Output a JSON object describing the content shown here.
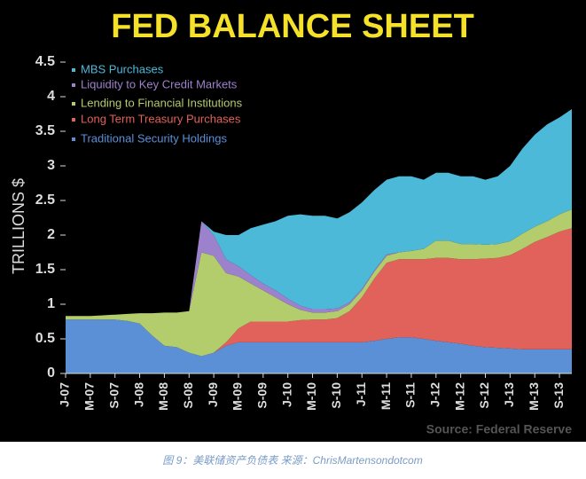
{
  "chart_data": {
    "type": "stacked-area",
    "title": "FED BALANCE SHEET",
    "y_label": "TRILLIONS $",
    "source": "Source: Federal Reserve",
    "caption": "图 9：美联储资产负债表  来源：ChrisMartensondotcom",
    "categories": [
      "J-07",
      null,
      "M-07",
      null,
      "S-07",
      null,
      "J-08",
      null,
      "M-08",
      null,
      "S-08",
      null,
      "J-09",
      null,
      "M-09",
      null,
      "S-09",
      null,
      "J-10",
      null,
      "M-10",
      null,
      "S-10",
      null,
      "J-11",
      null,
      "M-11",
      null,
      "S-11",
      null,
      "J-12",
      null,
      "M-12",
      null,
      "S-12",
      null,
      "J-13",
      null,
      "M-13",
      null,
      "S-13",
      null
    ],
    "ylim": [
      0,
      4.5
    ],
    "yticks": [
      0,
      0.5,
      1,
      1.5,
      2,
      2.5,
      3,
      3.5,
      4,
      4.5
    ],
    "series": [
      {
        "name": "Traditional Security Holdings",
        "color": "#5b8fd6",
        "values": [
          0.78,
          0.78,
          0.78,
          0.78,
          0.78,
          0.76,
          0.72,
          0.55,
          0.4,
          0.38,
          0.3,
          0.25,
          0.3,
          0.4,
          0.45,
          0.45,
          0.45,
          0.45,
          0.45,
          0.45,
          0.45,
          0.45,
          0.45,
          0.45,
          0.45,
          0.47,
          0.5,
          0.52,
          0.52,
          0.5,
          0.47,
          0.45,
          0.43,
          0.4,
          0.38,
          0.37,
          0.36,
          0.35,
          0.35,
          0.35,
          0.35,
          0.35
        ]
      },
      {
        "name": "Long Term Treasury Purchases",
        "color": "#e0625a",
        "values": [
          0,
          0,
          0,
          0,
          0,
          0,
          0,
          0,
          0,
          0,
          0,
          0,
          0,
          0.05,
          0.2,
          0.3,
          0.3,
          0.3,
          0.3,
          0.32,
          0.33,
          0.33,
          0.35,
          0.45,
          0.65,
          0.9,
          1.1,
          1.13,
          1.13,
          1.15,
          1.2,
          1.22,
          1.22,
          1.25,
          1.28,
          1.3,
          1.35,
          1.45,
          1.55,
          1.62,
          1.7,
          1.75
        ]
      },
      {
        "name": "Lending to Financial Institutions",
        "color": "#b3cc6c",
        "values": [
          0.05,
          0.05,
          0.05,
          0.06,
          0.07,
          0.1,
          0.15,
          0.32,
          0.48,
          0.5,
          0.6,
          1.5,
          1.4,
          1.0,
          0.75,
          0.55,
          0.45,
          0.35,
          0.25,
          0.15,
          0.1,
          0.1,
          0.1,
          0.1,
          0.1,
          0.1,
          0.1,
          0.1,
          0.12,
          0.15,
          0.25,
          0.25,
          0.22,
          0.22,
          0.2,
          0.2,
          0.2,
          0.22,
          0.22,
          0.23,
          0.25,
          0.27
        ]
      },
      {
        "name": "Liquidity to Key Credit Markets",
        "color": "#9c82cc",
        "values": [
          0,
          0,
          0,
          0,
          0,
          0,
          0,
          0,
          0,
          0,
          0,
          0.45,
          0.3,
          0.2,
          0.15,
          0.12,
          0.1,
          0.1,
          0.08,
          0.06,
          0.05,
          0.05,
          0.04,
          0.03,
          0.02,
          0.02,
          0.02,
          0,
          0,
          0,
          0,
          0,
          0,
          0,
          0,
          0,
          0,
          0,
          0,
          0,
          0,
          0
        ]
      },
      {
        "name": "MBS Purchases",
        "color": "#4cb9d9",
        "values": [
          0,
          0,
          0,
          0,
          0,
          0,
          0,
          0,
          0,
          0,
          0,
          0,
          0.05,
          0.35,
          0.45,
          0.68,
          0.85,
          1.0,
          1.2,
          1.32,
          1.35,
          1.35,
          1.3,
          1.3,
          1.25,
          1.16,
          1.08,
          1.1,
          1.08,
          1.0,
          0.98,
          0.98,
          0.98,
          0.98,
          0.94,
          0.98,
          1.09,
          1.23,
          1.33,
          1.4,
          1.4,
          1.45
        ]
      }
    ]
  }
}
